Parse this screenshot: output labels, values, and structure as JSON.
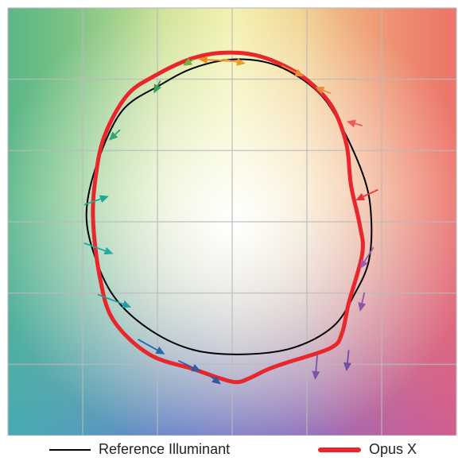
{
  "chart_data": {
    "type": "line",
    "title": "",
    "xlabel": "",
    "ylabel": "",
    "grid": true,
    "grid_divisions": 6,
    "legend_placement": "bottom",
    "xlim": [
      -1,
      1
    ],
    "ylim": [
      -1,
      1
    ],
    "series": [
      {
        "name": "Reference Illuminant",
        "color": "#000000",
        "points": [
          [
            0.01,
            0.76
          ],
          [
            0.2,
            0.73
          ],
          [
            0.38,
            0.61
          ],
          [
            0.49,
            0.44
          ],
          [
            0.59,
            0.2
          ],
          [
            0.62,
            0.02
          ],
          [
            0.61,
            -0.18
          ],
          [
            0.55,
            -0.33
          ],
          [
            0.45,
            -0.49
          ],
          [
            0.27,
            -0.59
          ],
          [
            0.05,
            -0.62
          ],
          [
            -0.17,
            -0.6
          ],
          [
            -0.36,
            -0.51
          ],
          [
            -0.52,
            -0.36
          ],
          [
            -0.61,
            -0.17
          ],
          [
            -0.65,
            0.04
          ],
          [
            -0.6,
            0.28
          ],
          [
            -0.49,
            0.52
          ],
          [
            -0.32,
            0.64
          ],
          [
            -0.17,
            0.72
          ],
          [
            0.01,
            0.76
          ]
        ]
      },
      {
        "name": "Opus X",
        "color": "#e8262b",
        "points": [
          [
            -0.05,
            0.79
          ],
          [
            0.1,
            0.78
          ],
          [
            0.25,
            0.72
          ],
          [
            0.36,
            0.64
          ],
          [
            0.45,
            0.53
          ],
          [
            0.51,
            0.36
          ],
          [
            0.53,
            0.17
          ],
          [
            0.57,
            -0.02
          ],
          [
            0.58,
            -0.15
          ],
          [
            0.52,
            -0.38
          ],
          [
            0.49,
            -0.52
          ],
          [
            0.44,
            -0.59
          ],
          [
            0.24,
            -0.66
          ],
          [
            0.16,
            -0.69
          ],
          [
            0.08,
            -0.73
          ],
          [
            0.02,
            -0.75
          ],
          [
            -0.06,
            -0.73
          ],
          [
            -0.17,
            -0.69
          ],
          [
            -0.37,
            -0.62
          ],
          [
            -0.53,
            -0.46
          ],
          [
            -0.59,
            -0.26
          ],
          [
            -0.62,
            0.0
          ],
          [
            -0.61,
            0.2
          ],
          [
            -0.57,
            0.4
          ],
          [
            -0.47,
            0.59
          ],
          [
            -0.35,
            0.68
          ],
          [
            -0.19,
            0.76
          ],
          [
            -0.05,
            0.79
          ]
        ]
      }
    ],
    "arrows": [
      {
        "from": [
          0.02,
          0.75
        ],
        "to": [
          -0.15,
          0.76
        ],
        "color": "#ea8c1c"
      },
      {
        "from": [
          -0.04,
          0.76
        ],
        "to": [
          0.06,
          0.74
        ],
        "color": "#f09a2b"
      },
      {
        "from": [
          0.22,
          0.73
        ],
        "to": [
          0.32,
          0.68
        ],
        "color": "#ec8a35"
      },
      {
        "from": [
          0.44,
          0.6
        ],
        "to": [
          0.37,
          0.63
        ],
        "color": "#e98b3a"
      },
      {
        "from": [
          0.58,
          0.45
        ],
        "to": [
          0.51,
          0.47
        ],
        "color": "#ee5a5e"
      },
      {
        "from": [
          0.65,
          0.15
        ],
        "to": [
          0.55,
          0.1
        ],
        "color": "#e8353d"
      },
      {
        "from": [
          0.63,
          -0.12
        ],
        "to": [
          0.57,
          -0.22
        ],
        "color": "#a05aa8"
      },
      {
        "from": [
          0.59,
          -0.33
        ],
        "to": [
          0.57,
          -0.42
        ],
        "color": "#8a57a8"
      },
      {
        "from": [
          0.52,
          -0.6
        ],
        "to": [
          0.51,
          -0.7
        ],
        "color": "#6b51a5"
      },
      {
        "from": [
          0.38,
          -0.62
        ],
        "to": [
          0.37,
          -0.74
        ],
        "color": "#7a55a6"
      },
      {
        "from": [
          -0.1,
          -0.72
        ],
        "to": [
          -0.05,
          -0.76
        ],
        "color": "#3456a6"
      },
      {
        "from": [
          -0.24,
          -0.65
        ],
        "to": [
          -0.14,
          -0.7
        ],
        "color": "#2c5ca8"
      },
      {
        "from": [
          -0.42,
          -0.55
        ],
        "to": [
          -0.3,
          -0.62
        ],
        "color": "#2a66aa"
      },
      {
        "from": [
          -0.6,
          -0.34
        ],
        "to": [
          -0.45,
          -0.4
        ],
        "color": "#1f9ea8"
      },
      {
        "from": [
          -0.66,
          -0.1
        ],
        "to": [
          -0.53,
          -0.15
        ],
        "color": "#1eae9f"
      },
      {
        "from": [
          -0.66,
          0.08
        ],
        "to": [
          -0.55,
          0.12
        ],
        "color": "#1dab93"
      },
      {
        "from": [
          -0.5,
          0.43
        ],
        "to": [
          -0.55,
          0.38
        ],
        "color": "#2ea572"
      },
      {
        "from": [
          -0.32,
          0.66
        ],
        "to": [
          -0.35,
          0.6
        ],
        "color": "#3a9a58"
      },
      {
        "from": [
          -0.17,
          0.76
        ],
        "to": [
          -0.22,
          0.73
        ],
        "color": "#7ab03a"
      }
    ]
  },
  "legend": {
    "reference_label": "Reference Illuminant",
    "reference_color": "#000000",
    "opus_label": "Opus X",
    "opus_color": "#e8262b"
  }
}
